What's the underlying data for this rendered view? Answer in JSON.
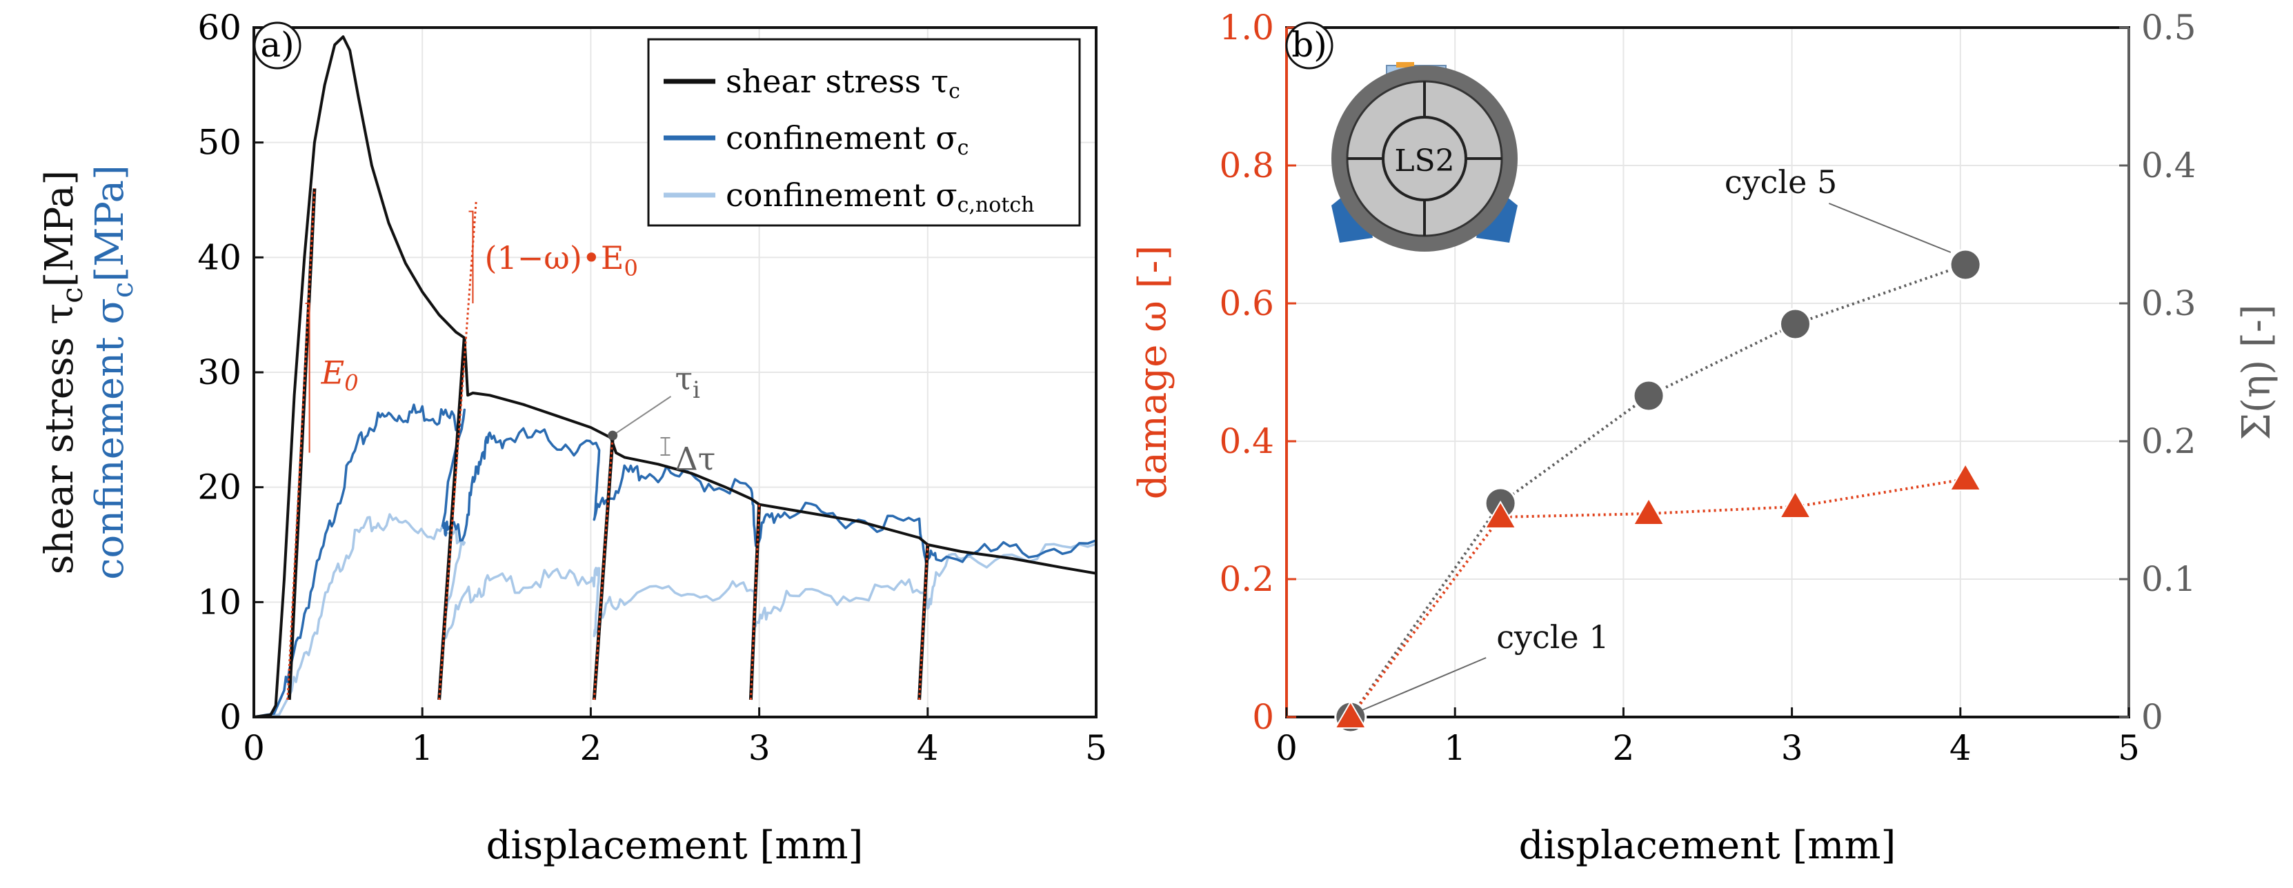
{
  "colors": {
    "black": "#111111",
    "blue": "#2a6bb1",
    "lightblue": "#a9c8e8",
    "red": "#e0401a",
    "gray": "#5f5f5f"
  },
  "chart_data": [
    {
      "type": "line",
      "panel_label": "a)",
      "xlabel": "displacement [mm]",
      "ylabel_parts": {
        "shear_prefix": "shear stress τ",
        "shear_sub": "c",
        "shear_unit": "[MPa]",
        "conf_prefix": "confinement σ",
        "conf_sub": "c",
        "conf_unit": "[MPa]"
      },
      "xlim": [
        0,
        5
      ],
      "ylim": [
        0,
        60
      ],
      "xticks": [
        "0",
        "1",
        "2",
        "3",
        "4",
        "5"
      ],
      "yticks": [
        "0",
        "10",
        "20",
        "30",
        "40",
        "50",
        "60"
      ],
      "legend": {
        "position": "top-right",
        "entries": [
          {
            "prefix": "shear stress τ",
            "sub": "c",
            "color": "black"
          },
          {
            "prefix": "confinement σ",
            "sub": "c",
            "color": "blue"
          },
          {
            "prefix": "confinement σ",
            "sub": "c,notch",
            "color": "lightblue"
          }
        ]
      },
      "series": [
        {
          "name": "shear stress τc",
          "color": "black",
          "points": [
            [
              0,
              0
            ],
            [
              0.1,
              0.2
            ],
            [
              0.13,
              1
            ],
            [
              0.18,
              12
            ],
            [
              0.24,
              28
            ],
            [
              0.3,
              40
            ],
            [
              0.36,
              50
            ],
            [
              0.42,
              55
            ],
            [
              0.48,
              58.5
            ],
            [
              0.53,
              59.2
            ],
            [
              0.57,
              58
            ],
            [
              0.62,
              54
            ],
            [
              0.7,
              48
            ],
            [
              0.8,
              43
            ],
            [
              0.9,
              39.5
            ],
            [
              1.0,
              37
            ],
            [
              1.1,
              35
            ],
            [
              1.2,
              33.5
            ],
            [
              1.25,
              33
            ],
            [
              1.27,
              28
            ],
            [
              1.3,
              28.2
            ],
            [
              1.4,
              28
            ],
            [
              1.6,
              27.2
            ],
            [
              1.8,
              26.2
            ],
            [
              2.0,
              25.2
            ],
            [
              2.12,
              24.3
            ],
            [
              2.15,
              23
            ],
            [
              2.2,
              22.6
            ],
            [
              2.4,
              22
            ],
            [
              2.6,
              21.2
            ],
            [
              2.8,
              20
            ],
            [
              2.95,
              19
            ],
            [
              3.0,
              18.5
            ],
            [
              3.2,
              18
            ],
            [
              3.4,
              17.5
            ],
            [
              3.6,
              17
            ],
            [
              3.8,
              16.2
            ],
            [
              3.95,
              15.6
            ],
            [
              4.0,
              15
            ],
            [
              4.2,
              14.4
            ],
            [
              4.5,
              13.8
            ],
            [
              4.8,
              13
            ],
            [
              5.0,
              12.5
            ]
          ]
        },
        {
          "name": "confinement σc",
          "color": "blue",
          "points": [
            [
              0,
              0
            ],
            [
              0.12,
              0.3
            ],
            [
              0.2,
              3
            ],
            [
              0.3,
              9
            ],
            [
              0.4,
              14
            ],
            [
              0.5,
              19
            ],
            [
              0.6,
              23
            ],
            [
              0.7,
              25.5
            ],
            [
              0.8,
              26.2
            ],
            [
              0.9,
              26.4
            ],
            [
              1.0,
              26.5
            ],
            [
              1.1,
              26.3
            ],
            [
              1.2,
              25.8
            ],
            [
              1.25,
              26
            ],
            [
              1.12,
              17.5
            ],
            [
              1.15,
              16
            ],
            [
              1.25,
              16.3
            ],
            [
              1.3,
              20
            ],
            [
              1.35,
              23
            ],
            [
              1.4,
              24
            ],
            [
              1.5,
              24.3
            ],
            [
              1.7,
              24.3
            ],
            [
              1.9,
              23.6
            ],
            [
              2.05,
              23.2
            ],
            [
              2.02,
              17.2
            ],
            [
              2.1,
              19
            ],
            [
              2.2,
              21
            ],
            [
              2.3,
              21.4
            ],
            [
              2.5,
              20.8
            ],
            [
              2.7,
              20.4
            ],
            [
              2.95,
              19.8
            ],
            [
              2.98,
              15.5
            ],
            [
              3.05,
              17.2
            ],
            [
              3.15,
              18
            ],
            [
              3.4,
              17.5
            ],
            [
              3.7,
              17
            ],
            [
              3.95,
              16.8
            ],
            [
              4.0,
              13.5
            ],
            [
              4.05,
              14
            ],
            [
              4.3,
              14.2
            ],
            [
              4.6,
              14.6
            ],
            [
              5.0,
              14.8
            ]
          ]
        },
        {
          "name": "confinement σc,notch",
          "color": "lightblue",
          "points": [
            [
              0,
              0
            ],
            [
              0.15,
              0.2
            ],
            [
              0.25,
              3
            ],
            [
              0.35,
              7
            ],
            [
              0.45,
              11
            ],
            [
              0.55,
              14.5
            ],
            [
              0.65,
              16.3
            ],
            [
              0.75,
              17
            ],
            [
              0.9,
              16.8
            ],
            [
              1.05,
              16.3
            ],
            [
              1.2,
              15.8
            ],
            [
              1.25,
              15.9
            ],
            [
              1.12,
              7.3
            ],
            [
              1.2,
              9
            ],
            [
              1.3,
              11
            ],
            [
              1.4,
              11.6
            ],
            [
              1.6,
              11.7
            ],
            [
              1.8,
              12
            ],
            [
              2.0,
              12.3
            ],
            [
              2.05,
              12.2
            ],
            [
              2.02,
              7.2
            ],
            [
              2.1,
              9.5
            ],
            [
              2.2,
              10.6
            ],
            [
              2.5,
              10.8
            ],
            [
              2.8,
              10.9
            ],
            [
              2.97,
              11
            ],
            [
              2.98,
              7.4
            ],
            [
              3.05,
              9.5
            ],
            [
              3.2,
              10.3
            ],
            [
              3.5,
              10.6
            ],
            [
              3.8,
              11
            ],
            [
              3.98,
              11.4
            ],
            [
              4.0,
              9
            ],
            [
              4.05,
              12.8
            ],
            [
              4.2,
              13.6
            ],
            [
              4.6,
              14.4
            ],
            [
              5.0,
              14.6
            ]
          ]
        },
        {
          "name": "unloading/reloading cycles",
          "color": "black",
          "segments": [
            [
              [
                0.21,
                1.5
              ],
              [
                0.36,
                46
              ]
            ],
            [
              [
                1.1,
                1.5
              ],
              [
                1.25,
                33
              ]
            ],
            [
              [
                2.02,
                1.5
              ],
              [
                2.13,
                24.3
              ]
            ],
            [
              [
                2.95,
                1.5
              ],
              [
                3.0,
                18.5
              ]
            ],
            [
              [
                3.95,
                1.5
              ],
              [
                4.0,
                15
              ]
            ]
          ]
        }
      ],
      "fit_lines": [
        {
          "label": "E0",
          "from": [
            0.2,
            1.5
          ],
          "to": [
            0.36,
            46
          ]
        },
        {
          "label": "(1−ω)·E0",
          "from": [
            1.1,
            1.5
          ],
          "to": [
            1.32,
            45
          ]
        },
        {
          "from": [
            2.02,
            1.5
          ],
          "to": [
            2.13,
            24.5
          ]
        },
        {
          "from": [
            2.95,
            1.5
          ],
          "to": [
            3.0,
            18.5
          ]
        },
        {
          "from": [
            3.95,
            1.5
          ],
          "to": [
            4.0,
            15
          ]
        }
      ],
      "annotations": {
        "E0": {
          "text": "E",
          "sub": "0",
          "at": [
            0.4,
            29
          ]
        },
        "damaged_modulus": {
          "text": "(1−ω)•E",
          "sub": "0",
          "at": [
            1.37,
            39
          ]
        },
        "tau_i": {
          "text": "τ",
          "sub": "i",
          "point": [
            2.13,
            24.5
          ],
          "at": [
            2.5,
            28.5
          ]
        },
        "delta_tau": {
          "text": "Δτ",
          "at": [
            2.5,
            21.5
          ]
        }
      }
    },
    {
      "type": "scatter",
      "panel_label": "b)",
      "xlabel": "displacement [mm]",
      "ylabel_left": "damage ω [-]",
      "ylabel_right": "Σ(η) [-]",
      "xlim": [
        0,
        5
      ],
      "ylim_left": [
        0,
        1.0
      ],
      "ylim_right": [
        0,
        0.5
      ],
      "xticks": [
        "0",
        "1",
        "2",
        "3",
        "4",
        "5"
      ],
      "yticks_left": [
        "0",
        "0.2",
        "0.4",
        "0.6",
        "0.8",
        "1.0"
      ],
      "yticks_right": [
        "0",
        "0.1",
        "0.2",
        "0.3",
        "0.4",
        "0.5"
      ],
      "inset_label": "LS2",
      "series": [
        {
          "name": "damage ω",
          "axis": "left",
          "color": "red",
          "marker": "triangle",
          "x": [
            0.38,
            1.27,
            2.15,
            3.02,
            4.03
          ],
          "y": [
            0.0,
            0.29,
            0.295,
            0.305,
            0.345
          ]
        },
        {
          "name": "Σ(η)",
          "axis": "right",
          "color": "gray",
          "marker": "circle",
          "x": [
            0.38,
            1.27,
            2.15,
            3.02,
            4.03
          ],
          "y": [
            0.0,
            0.155,
            0.233,
            0.285,
            0.328
          ]
        }
      ],
      "annotations": [
        {
          "text": "cycle 1",
          "at": [
            1.0,
            0.1
          ],
          "point": [
            0.4,
            0.0
          ]
        },
        {
          "text": "cycle 5",
          "at": [
            2.6,
            0.76
          ],
          "point": [
            4.0,
            0.66
          ]
        }
      ]
    }
  ]
}
